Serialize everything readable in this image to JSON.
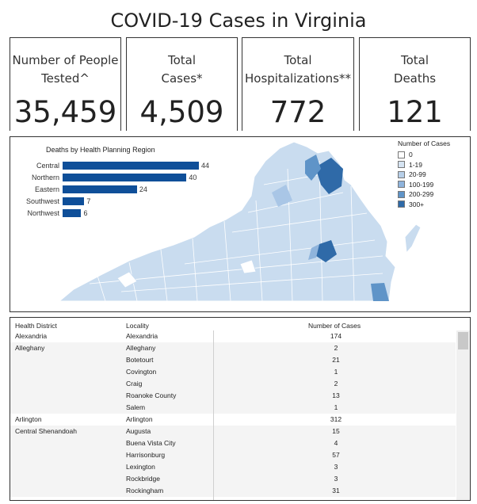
{
  "title": "COVID-19 Cases in Virginia",
  "cards": [
    {
      "label_line1": "Number of People",
      "label_line2": "Tested^",
      "value": "35,459"
    },
    {
      "label_line1": "Total",
      "label_line2": "Cases*",
      "value": "4,509"
    },
    {
      "label_line1": "Total",
      "label_line2": "Hospitalizations**",
      "value": "772"
    },
    {
      "label_line1": "Total",
      "label_line2": "Deaths",
      "value": "121"
    }
  ],
  "deaths_chart": {
    "title": "Deaths by Health Planning Region",
    "bar_color": "#0f4f99",
    "chart_data": {
      "type": "bar",
      "orientation": "horizontal",
      "categories": [
        "Central",
        "Northern",
        "Eastern",
        "Southwest",
        "Northwest"
      ],
      "values": [
        44,
        40,
        24,
        7,
        6
      ],
      "title": "Deaths by Health Planning Region"
    },
    "value_labels": [
      "44",
      "40",
      "24",
      "7",
      "6"
    ]
  },
  "map_legend": {
    "title": "Number of Cases",
    "items": [
      {
        "label": "0",
        "color": "#ffffff"
      },
      {
        "label": "1-19",
        "color": "#d6e4f2"
      },
      {
        "label": "20-99",
        "color": "#b7cfe8"
      },
      {
        "label": "100-199",
        "color": "#8fb4dc"
      },
      {
        "label": "200-299",
        "color": "#5f94c8"
      },
      {
        "label": "300+",
        "color": "#2f6aa8"
      }
    ]
  },
  "table": {
    "headers": {
      "district": "Health District",
      "locality": "Locality",
      "cases": "Number of Cases"
    },
    "rows": [
      {
        "district": "Alexandria",
        "locality": "Alexandria",
        "cases": "174"
      },
      {
        "district": "Alleghany",
        "locality": "Alleghany",
        "cases": "2"
      },
      {
        "district": "",
        "locality": "Botetourt",
        "cases": "21"
      },
      {
        "district": "",
        "locality": "Covington",
        "cases": "1"
      },
      {
        "district": "",
        "locality": "Craig",
        "cases": "2"
      },
      {
        "district": "",
        "locality": "Roanoke County",
        "cases": "13"
      },
      {
        "district": "",
        "locality": "Salem",
        "cases": "1"
      },
      {
        "district": "Arlington",
        "locality": "Arlington",
        "cases": "312"
      },
      {
        "district": "Central Shenandoah",
        "locality": "Augusta",
        "cases": "15"
      },
      {
        "district": "",
        "locality": "Buena Vista City",
        "cases": "4"
      },
      {
        "district": "",
        "locality": "Harrisonburg",
        "cases": "57"
      },
      {
        "district": "",
        "locality": "Lexington",
        "cases": "3"
      },
      {
        "district": "",
        "locality": "Rockbridge",
        "cases": "3"
      },
      {
        "district": "",
        "locality": "Rockingham",
        "cases": "31"
      }
    ]
  }
}
